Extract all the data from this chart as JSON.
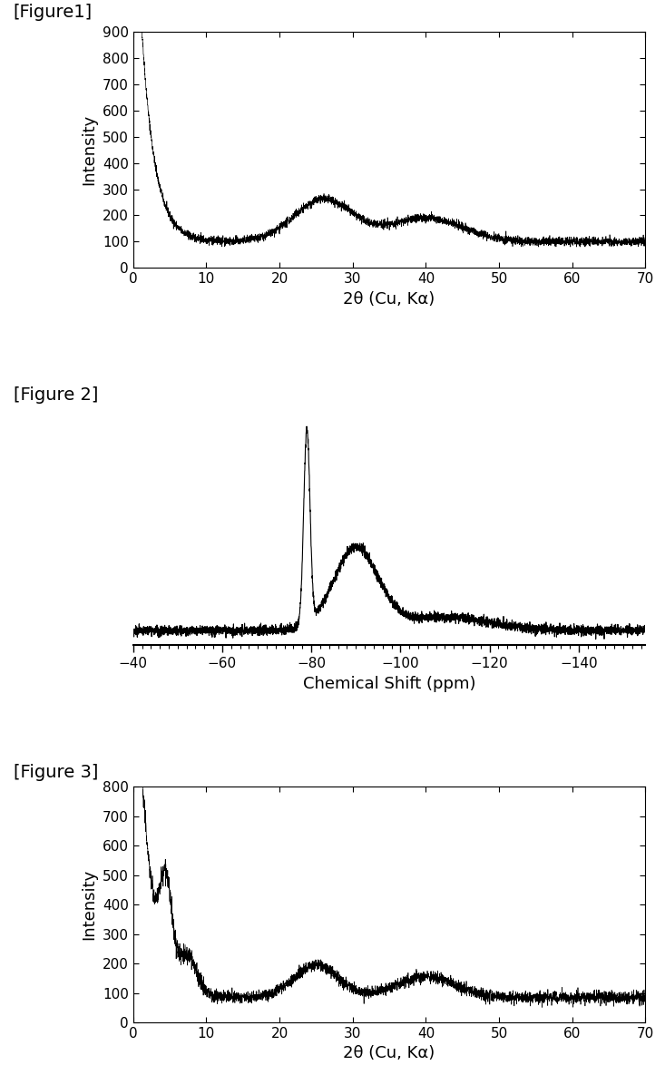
{
  "fig1_label": "[Figure1]",
  "fig2_label": "[Figure 2]",
  "fig3_label": "[Figure 3]",
  "fig1_xlabel": "2θ (Cu, Kα)",
  "fig1_ylabel": "Intensity",
  "fig1_xlim": [
    0,
    70
  ],
  "fig1_ylim": [
    0,
    900
  ],
  "fig1_yticks": [
    0,
    100,
    200,
    300,
    400,
    500,
    600,
    700,
    800,
    900
  ],
  "fig1_xticks": [
    0,
    10,
    20,
    30,
    40,
    50,
    60,
    70
  ],
  "fig2_xlabel": "Chemical Shift (ppm)",
  "fig2_xticks": [
    -40,
    -60,
    -80,
    -100,
    -120,
    -140
  ],
  "fig2_xlim": [
    -40,
    -155
  ],
  "fig3_xlabel": "2θ (Cu, Kα)",
  "fig3_ylabel": "Intensity",
  "fig3_xlim": [
    0,
    70
  ],
  "fig3_ylim": [
    0,
    800
  ],
  "fig3_yticks": [
    0,
    100,
    200,
    300,
    400,
    500,
    600,
    700,
    800
  ],
  "fig3_xticks": [
    0,
    10,
    20,
    30,
    40,
    50,
    60,
    70
  ],
  "line_color": "#000000",
  "bg_color": "#ffffff",
  "label_fontsize": 13,
  "tick_fontsize": 11,
  "figure_label_fontsize": 14
}
